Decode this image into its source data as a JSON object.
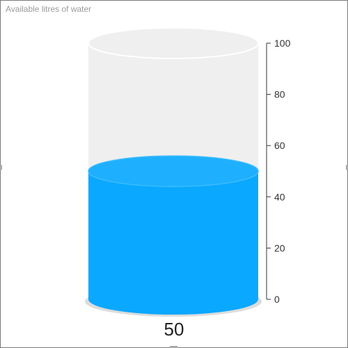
{
  "chart_data": {
    "type": "cylinder-gauge",
    "title": "Available litres of water",
    "value": 50,
    "value_label": "50",
    "ylim": [
      0,
      100
    ],
    "ticks": [
      {
        "value": 0,
        "label": "0"
      },
      {
        "value": 20,
        "label": "20"
      },
      {
        "value": 40,
        "label": "40"
      },
      {
        "value": 60,
        "label": "60"
      },
      {
        "value": 80,
        "label": "80"
      },
      {
        "value": 100,
        "label": "100"
      }
    ],
    "fill_color": "#0aa8ff",
    "fill_top_color": "#1eb0ff",
    "empty_color": "#efefef",
    "base_shadow_color": "#dcdcdc",
    "axis_color": "#333333"
  }
}
